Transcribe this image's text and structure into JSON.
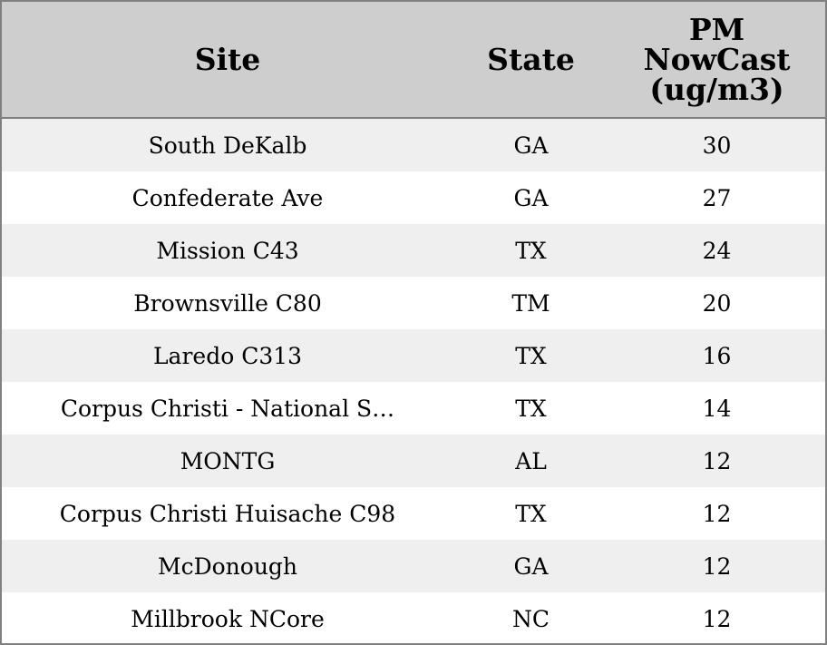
{
  "chart_data": {
    "type": "table",
    "columns": [
      "Site",
      "State",
      "PM NowCast (ug/m3)"
    ],
    "header_lines": [
      [
        "Site"
      ],
      [
        "State"
      ],
      [
        "PM",
        "NowCast",
        "(ug/m3)"
      ]
    ],
    "rows": [
      {
        "site": "South DeKalb",
        "state": "GA",
        "pm": "30"
      },
      {
        "site": "Confederate Ave",
        "state": "GA",
        "pm": "27"
      },
      {
        "site": "Mission C43",
        "state": "TX",
        "pm": "24"
      },
      {
        "site": "Brownsville C80",
        "state": "TM",
        "pm": "20"
      },
      {
        "site": "Laredo C313",
        "state": "TX",
        "pm": "16"
      },
      {
        "site": "Corpus Christi - National S…",
        "state": "TX",
        "pm": "14"
      },
      {
        "site": "MONTG",
        "state": "AL",
        "pm": "12"
      },
      {
        "site": "Corpus Christi Huisache C98",
        "state": "TX",
        "pm": "12"
      },
      {
        "site": "McDonough",
        "state": "GA",
        "pm": "12"
      },
      {
        "site": "Millbrook NCore",
        "state": "NC",
        "pm": "12"
      }
    ],
    "colors": {
      "header_bg": "#cecece",
      "row_alt_bg": "#efefef",
      "row_bg": "#ffffff",
      "border": "#808080"
    }
  }
}
